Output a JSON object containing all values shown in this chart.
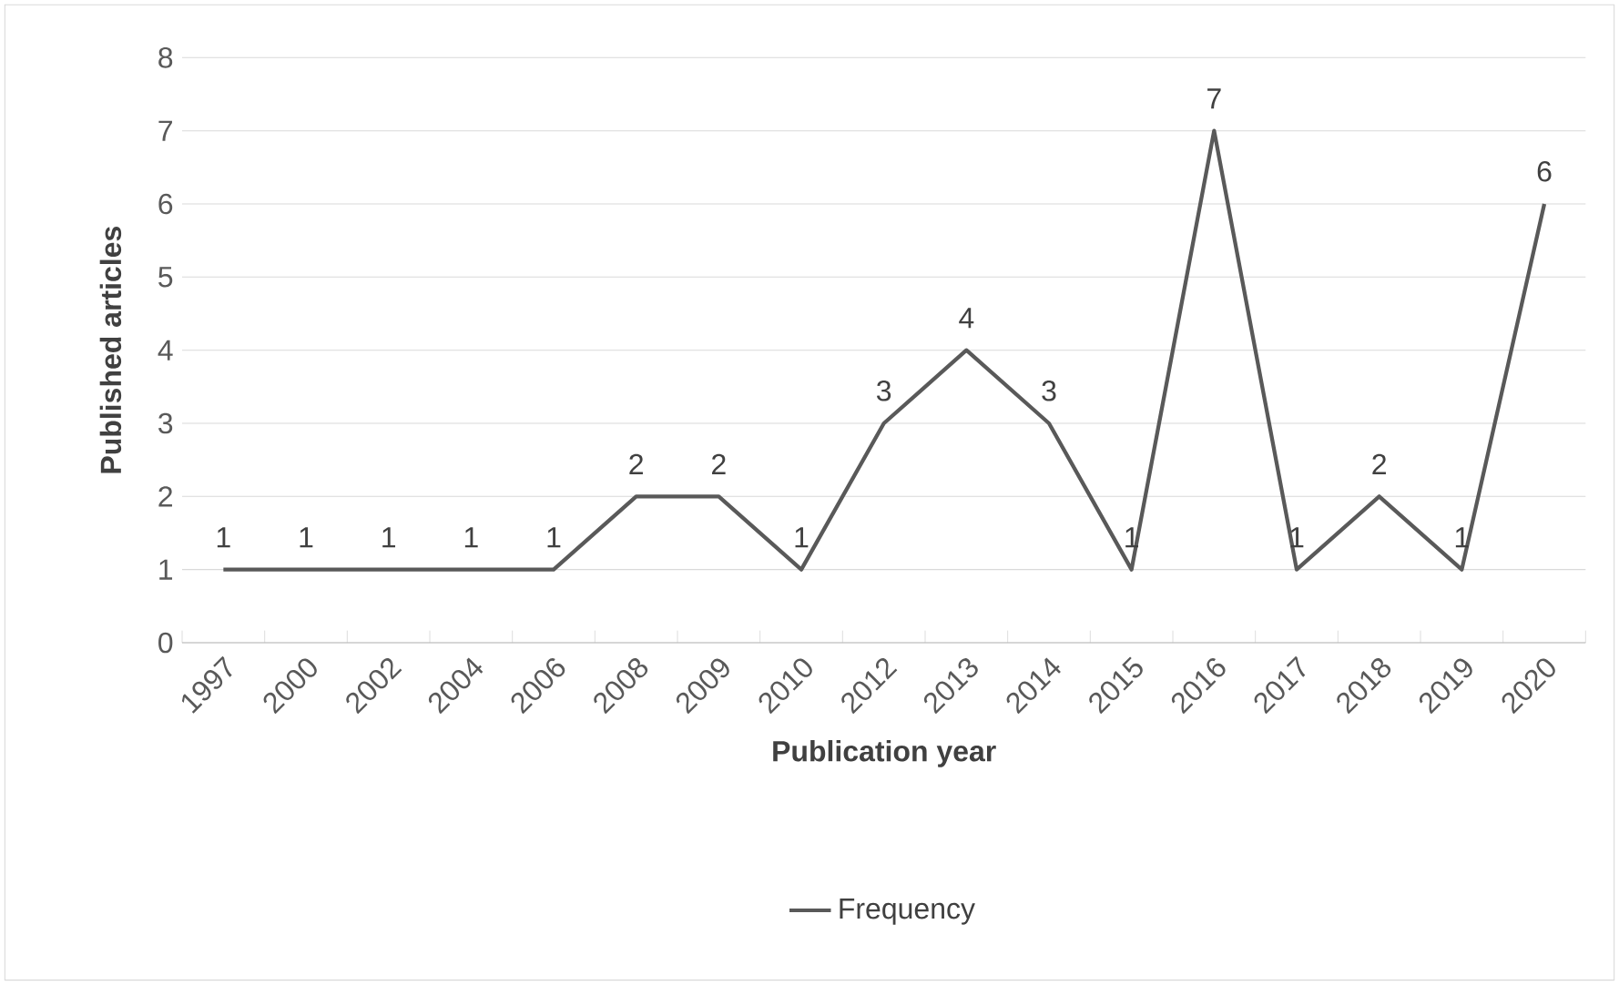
{
  "chart_data": {
    "type": "line",
    "xlabel": "Publication year",
    "ylabel": "Published articles",
    "categories": [
      "1997",
      "2000",
      "2002",
      "2004",
      "2006",
      "2008",
      "2009",
      "2010",
      "2012",
      "2013",
      "2014",
      "2015",
      "2016",
      "2017",
      "2018",
      "2019",
      "2020"
    ],
    "series": [
      {
        "name": "Frequency",
        "color": "#595959",
        "values": [
          1,
          1,
          1,
          1,
          1,
          2,
          2,
          1,
          3,
          4,
          3,
          1,
          7,
          1,
          2,
          1,
          6
        ]
      }
    ],
    "ylim": [
      0,
      8
    ],
    "yticks": [
      0,
      1,
      2,
      3,
      4,
      5,
      6,
      7,
      8
    ],
    "grid": "y",
    "legend": "bottom",
    "data_labels": true,
    "marker": "none"
  }
}
